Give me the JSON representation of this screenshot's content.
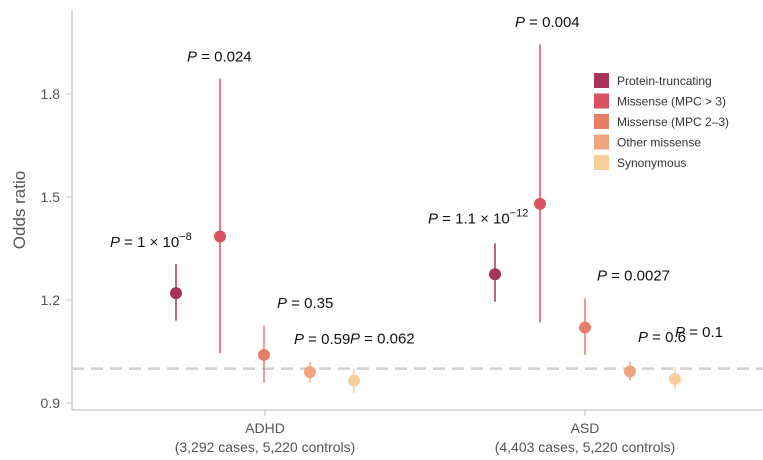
{
  "chart_data": {
    "type": "scatter",
    "ylabel": "Odds ratio",
    "y_ticks": [
      "0.9",
      "1.2",
      "1.5",
      "1.8"
    ],
    "ylim": [
      0.9,
      1.95
    ],
    "reference_line": 1.0,
    "grid": false,
    "legend_position": "top-right",
    "groups": [
      {
        "name": "ADHD",
        "subtitle": "(3,292 cases, 5,220 controls)"
      },
      {
        "name": "ASD",
        "subtitle": "(4,403 cases, 5,220 controls)"
      }
    ],
    "series": [
      {
        "name": "Protein-truncating",
        "color": "#a93259",
        "points": [
          {
            "group": "ADHD",
            "or": 1.22,
            "ci": [
              1.14,
              1.305
            ],
            "p_base": "1 × 10",
            "p_exp": "−8"
          },
          {
            "group": "ASD",
            "or": 1.275,
            "ci": [
              1.195,
              1.365
            ],
            "p_base": "1.1 × 10",
            "p_exp": "−12"
          }
        ]
      },
      {
        "name": "Missense (MPC > 3)",
        "color": "#d9545f",
        "points": [
          {
            "group": "ADHD",
            "or": 1.385,
            "ci": [
              1.045,
              1.845
            ],
            "p_base": "0.024",
            "p_exp": ""
          },
          {
            "group": "ASD",
            "or": 1.48,
            "ci": [
              1.135,
              1.945
            ],
            "p_base": "0.004",
            "p_exp": ""
          }
        ]
      },
      {
        "name": "Missense (MPC 2–3)",
        "color": "#e97e68",
        "points": [
          {
            "group": "ADHD",
            "or": 1.04,
            "ci": [
              0.96,
              1.125
            ],
            "p_base": "0.35",
            "p_exp": ""
          },
          {
            "group": "ASD",
            "or": 1.12,
            "ci": [
              1.04,
              1.205
            ],
            "p_base": "0.0027",
            "p_exp": ""
          }
        ]
      },
      {
        "name": "Other missense",
        "color": "#f2a57c",
        "points": [
          {
            "group": "ADHD",
            "or": 0.99,
            "ci": [
              0.96,
              1.02
            ],
            "p_base": "0.59",
            "p_exp": ""
          },
          {
            "group": "ASD",
            "or": 0.992,
            "ci": [
              0.965,
              1.02
            ],
            "p_base": "0.6",
            "p_exp": ""
          }
        ]
      },
      {
        "name": "Synonymous",
        "color": "#f7cf9e",
        "points": [
          {
            "group": "ADHD",
            "or": 0.965,
            "ci": [
              0.93,
              1.0
            ],
            "p_base": "0.062",
            "p_exp": ""
          },
          {
            "group": "ASD",
            "or": 0.97,
            "ci": [
              0.94,
              1.005
            ],
            "p_base": "0.1",
            "p_exp": ""
          }
        ]
      }
    ]
  }
}
